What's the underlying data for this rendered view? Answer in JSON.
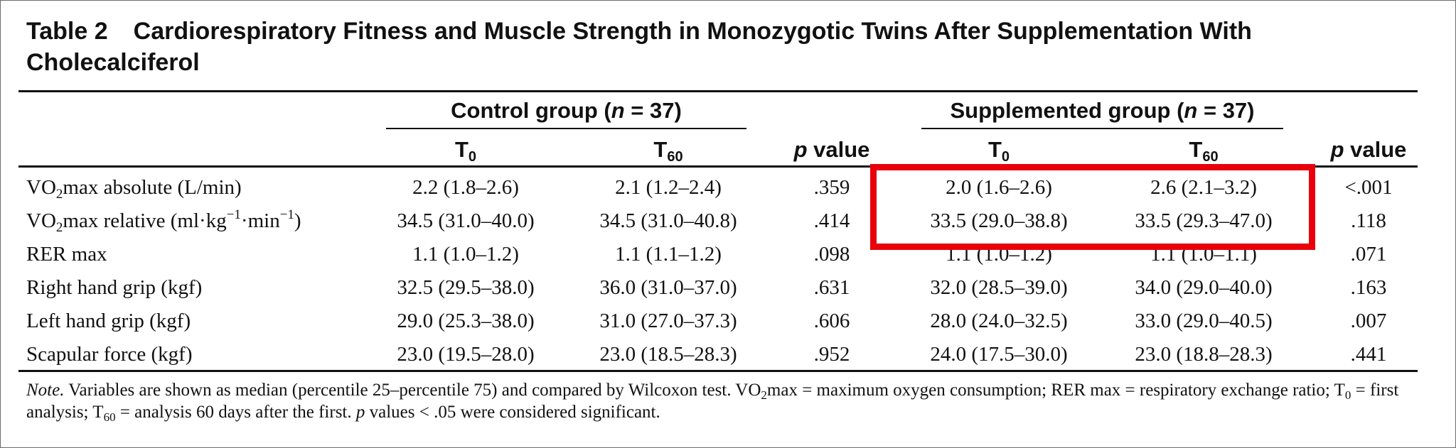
{
  "table": {
    "number": "Table 2",
    "title": "Cardiorespiratory Fitness and Muscle Strength in Monozygotic Twins After Supplementation With Cholecalciferol",
    "groups": {
      "control": {
        "prefix": "Control group (",
        "n_var": "n",
        "suffix": " = 37)"
      },
      "supplemented": {
        "prefix": "Supplemented group (",
        "n_var": "n",
        "suffix": " = 37)"
      }
    },
    "subheaders": {
      "t_letter": "T",
      "t0_sub": "0",
      "t60_sub": "60",
      "p_italic": "p",
      "p_rest": " value"
    },
    "rows": [
      {
        "label_pre": "VO",
        "label_sub": "2",
        "label_post": "max absolute (L/min)",
        "c_t0": "2.2 (1.8–2.6)",
        "c_t60": "2.1 (1.2–2.4)",
        "c_p": ".359",
        "s_t0": "2.0 (1.6–2.6)",
        "s_t60": "2.6 (2.1–3.2)",
        "s_p": "<.001"
      },
      {
        "label_pre": "VO",
        "label_sub": "2",
        "label_post": "max relative (ml·kg",
        "label_sup1": "−1",
        "label_mid": "·min",
        "label_sup2": "−1",
        "label_end": ")",
        "c_t0": "34.5 (31.0–40.0)",
        "c_t60": "34.5 (31.0–40.8)",
        "c_p": ".414",
        "s_t0": "33.5 (29.0–38.8)",
        "s_t60": "33.5 (29.3–47.0)",
        "s_p": ".118"
      },
      {
        "label": "RER max",
        "c_t0": "1.1 (1.0–1.2)",
        "c_t60": "1.1 (1.1–1.2)",
        "c_p": ".098",
        "s_t0": "1.1 (1.0–1.2)",
        "s_t60": "1.1 (1.0–1.1)",
        "s_p": ".071"
      },
      {
        "label": "Right hand grip (kgf)",
        "c_t0": "32.5 (29.5–38.0)",
        "c_t60": "36.0 (31.0–37.0)",
        "c_p": ".631",
        "s_t0": "32.0 (28.5–39.0)",
        "s_t60": "34.0 (29.0–40.0)",
        "s_p": ".163"
      },
      {
        "label": "Left hand grip (kgf)",
        "c_t0": "29.0 (25.3–38.0)",
        "c_t60": "31.0 (27.0–37.3)",
        "c_p": ".606",
        "s_t0": "28.0 (24.0–32.5)",
        "s_t60": "33.0 (29.0–40.5)",
        "s_p": ".007"
      },
      {
        "label": "Scapular force (kgf)",
        "c_t0": "23.0 (19.5–28.0)",
        "c_t60": "23.0 (18.5–28.3)",
        "c_p": ".952",
        "s_t0": "24.0 (17.5–30.0)",
        "s_t60": "23.0 (18.8–28.3)",
        "s_p": ".441"
      }
    ],
    "note": {
      "label": "Note.",
      "p1": " Variables are shown as median (percentile 25–percentile 75) and compared by Wilcoxon test. VO",
      "sub1": "2",
      "p2": "max = maximum oxygen consumption; RER max = respiratory exchange ratio; T",
      "sub2": "0",
      "p3": " = first analysis; T",
      "sub3": "60",
      "p4": " = analysis 60 days after the first. ",
      "p_italic": "p",
      "p5": " values < .05 were considered significant."
    },
    "highlight_color": "#e8000b"
  }
}
